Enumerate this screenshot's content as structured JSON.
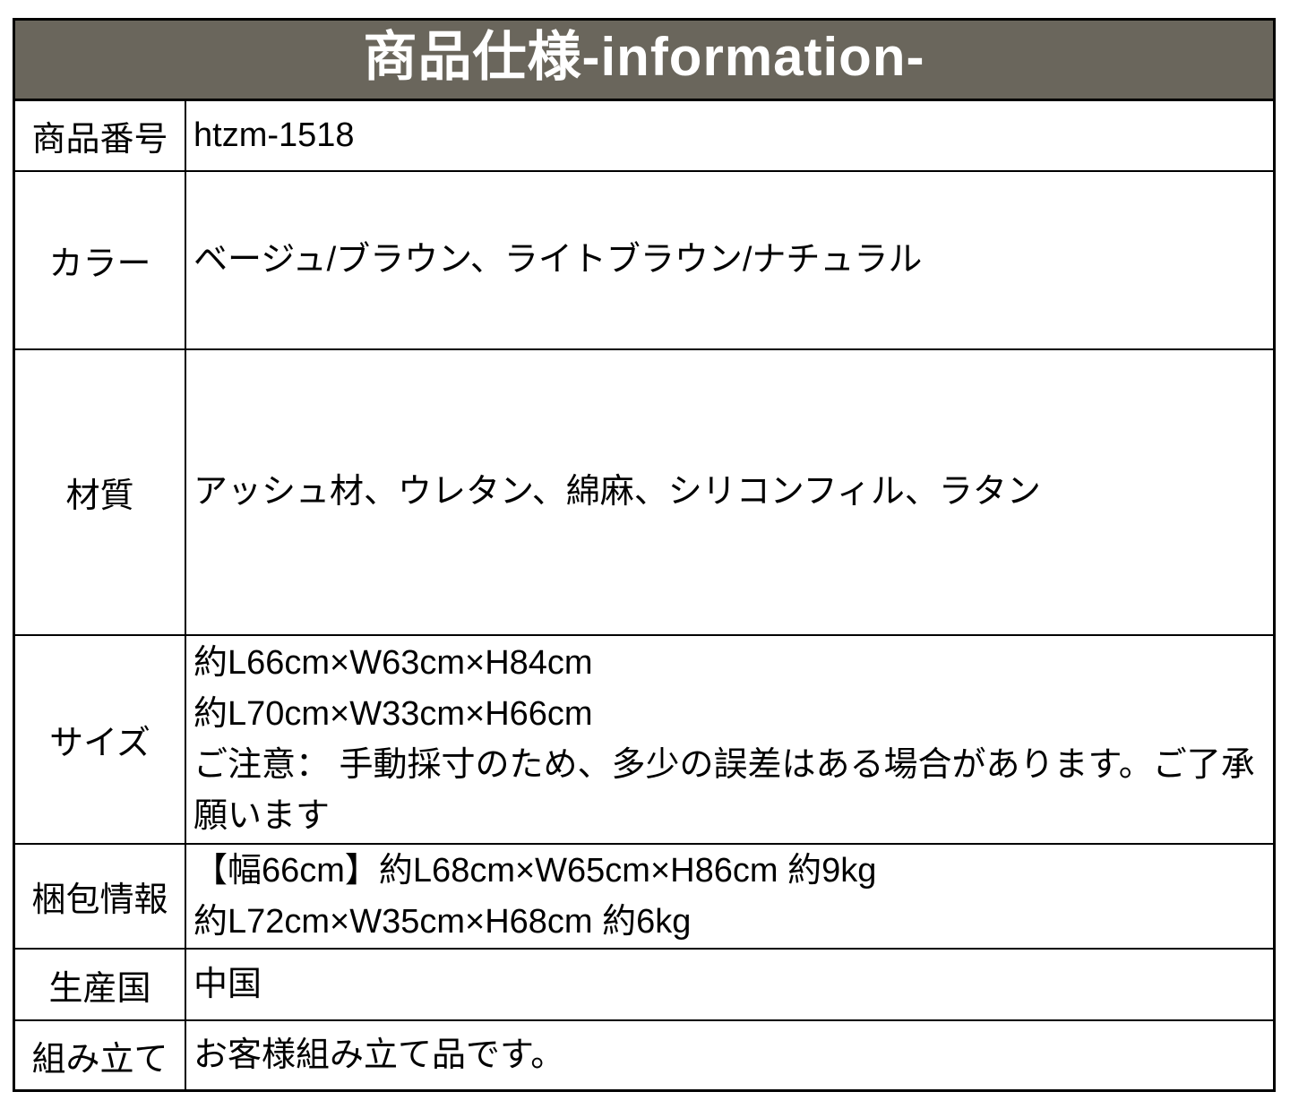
{
  "header": {
    "title": "商品仕様-information-"
  },
  "colors": {
    "header_bg": "#6a665c",
    "header_text": "#ffffff",
    "border": "#000000",
    "body_text": "#000000",
    "page_bg": "#ffffff"
  },
  "table": {
    "rows": [
      {
        "label": "商品番号",
        "value": "htzm-1518"
      },
      {
        "label": "カラー",
        "value": "ベージュ/ブラウン、ライトブラウン/ナチュラル"
      },
      {
        "label": "材質",
        "value": "アッシュ材、ウレタン、綿麻、シリコンフィル、ラタン"
      },
      {
        "label": "サイズ",
        "lines": [
          "約L66cm×W63cm×H84cm",
          "約L70cm×W33cm×H66cm",
          "ご注意： 手動採寸のため、多少の誤差はある場合があります。ご了承願います"
        ]
      },
      {
        "label": "梱包情報",
        "lines": [
          "【幅66cm】約L68cm×W65cm×H86cm 約9kg",
          "約L72cm×W35cm×H68cm 約6kg"
        ]
      },
      {
        "label": "生産国",
        "value": "中国"
      },
      {
        "label": "組み立て",
        "value": "お客様組み立て品です。"
      }
    ]
  }
}
